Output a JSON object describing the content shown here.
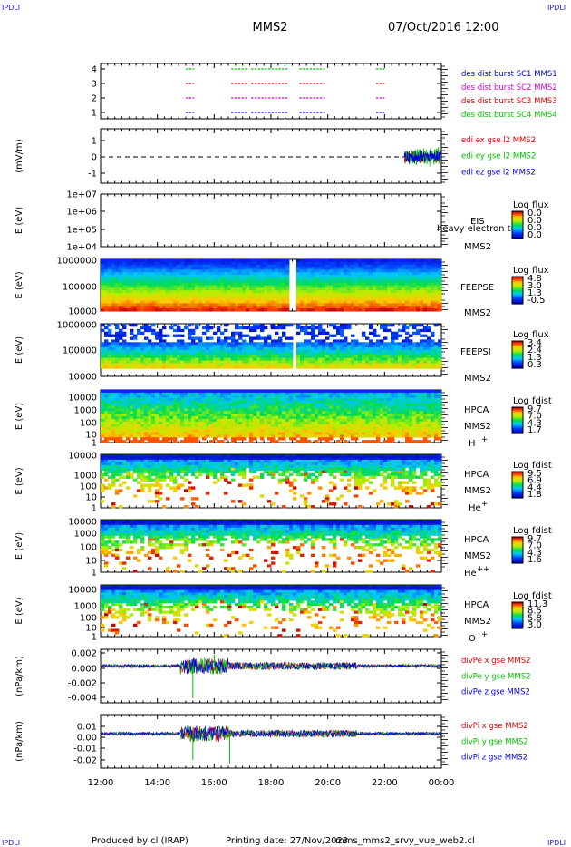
{
  "corner_label": "IPDLI",
  "header": {
    "spacecraft": "MMS2",
    "datetime": "07/Oct/2016 12:00"
  },
  "footer": {
    "produced_by": "Produced by cl (IRAP)",
    "printing_date": "Printing date: 27/Nov/2023",
    "file": "mms_mms2_srvy_vue_web2.cl"
  },
  "colors": {
    "red": "#e00000",
    "green": "#00c000",
    "blue": "#0000e0",
    "magenta": "#d000d0"
  },
  "chart_data": {
    "type": "multi-panel",
    "x_axis": {
      "range_hours": [
        12,
        24
      ],
      "tick_labels": [
        "12:00",
        "14:00",
        "16:00",
        "18:00",
        "20:00",
        "22:00",
        "00:00"
      ]
    },
    "panels": [
      {
        "id": "burst",
        "type": "line",
        "ylabel": "",
        "yticks": [
          "4",
          "3",
          "2",
          "1"
        ],
        "legend": [
          {
            "text": "des dist burst SC1 MMS1",
            "color": "#0000e0"
          },
          {
            "text": "des dist burst SC2 MMS2",
            "color": "#d000d0"
          },
          {
            "text": "des dist burst SC3 MMS3",
            "color": "#e00000"
          },
          {
            "text": "des dist burst SC4 MMS4",
            "color": "#00c000"
          }
        ],
        "series": [
          {
            "level": 4,
            "color": "#00c000",
            "intervals": [
              [
                15.0,
                15.3
              ],
              [
                16.6,
                17.2
              ],
              [
                17.3,
                18.6
              ],
              [
                19.0,
                19.9
              ],
              [
                21.7,
                22.0
              ]
            ]
          },
          {
            "level": 3,
            "color": "#e00000",
            "intervals": [
              [
                15.0,
                15.3
              ],
              [
                16.6,
                17.2
              ],
              [
                17.3,
                18.6
              ],
              [
                19.0,
                19.9
              ],
              [
                21.7,
                22.0
              ]
            ]
          },
          {
            "level": 2,
            "color": "#d000d0",
            "intervals": [
              [
                15.0,
                15.3
              ],
              [
                16.6,
                17.2
              ],
              [
                17.3,
                18.6
              ],
              [
                19.0,
                19.9
              ],
              [
                21.7,
                22.0
              ]
            ]
          },
          {
            "level": 1,
            "color": "#0000e0",
            "intervals": [
              [
                15.0,
                15.3
              ],
              [
                16.6,
                17.2
              ],
              [
                17.3,
                18.6
              ],
              [
                19.0,
                19.9
              ],
              [
                21.7,
                22.0
              ]
            ]
          }
        ]
      },
      {
        "id": "edi",
        "type": "line",
        "ylabel": "(mV/m)",
        "yticks": [
          "1",
          "0",
          "-1"
        ],
        "ylim": [
          -1.5,
          1.5
        ],
        "zero_line": "dashed",
        "legend": [
          {
            "text": "edi ex gse l2 MMS2",
            "color": "#e00000"
          },
          {
            "text": "edi ey gse l2 MMS2",
            "color": "#00c000"
          },
          {
            "text": "edi ez gse l2 MMS2",
            "color": "#0000e0"
          }
        ],
        "data_interval_hours": [
          22.7,
          24.0
        ]
      },
      {
        "id": "eis",
        "type": "heatmap",
        "ylabel": "E (eV)",
        "yticks": [
          "1e+07",
          "1e+06",
          "1e+05",
          "1e+04"
        ],
        "side": [
          "EIS",
          "heavy electron tof",
          "MMS2"
        ],
        "colorbar": {
          "title": "Log flux",
          "ticks": [
            "0.0",
            "0.0",
            "0.0",
            "0.0"
          ]
        },
        "empty": true
      },
      {
        "id": "feeps_e",
        "type": "heatmap",
        "ylabel": "E (eV)",
        "yticks": [
          "1000000",
          "100000",
          "10000"
        ],
        "side": [
          "FEEPSE",
          "MMS2"
        ],
        "colorbar": {
          "title": "Log flux",
          "ticks": [
            "4.8",
            "3.0",
            "1.3",
            "-0.5"
          ]
        }
      },
      {
        "id": "feeps_i",
        "type": "heatmap",
        "ylabel": "E (eV)",
        "yticks": [
          "1000000",
          "100000",
          "10000"
        ],
        "side": [
          "FEEPSI",
          "MMS2"
        ],
        "colorbar": {
          "title": "Log flux",
          "ticks": [
            "3.4",
            "2.4",
            "1.3",
            "0.3"
          ]
        }
      },
      {
        "id": "hpca_h",
        "type": "heatmap",
        "ylabel": "E (eV)",
        "yticks": [
          "10000",
          "1000",
          "100",
          "10",
          "1"
        ],
        "side": [
          "HPCA",
          "MMS2",
          "H",
          "+"
        ],
        "colorbar": {
          "title": "Log fdist",
          "ticks": [
            "9.7",
            "7.0",
            "4.3",
            "1.7"
          ]
        }
      },
      {
        "id": "hpca_he",
        "type": "heatmap",
        "ylabel": "E (eV)",
        "yticks": [
          "10000",
          "1000",
          "100",
          "10",
          "1"
        ],
        "side": [
          "HPCA",
          "MMS2",
          "He",
          "+"
        ],
        "colorbar": {
          "title": "Log fdist",
          "ticks": [
            "9.5",
            "6.9",
            "4.4",
            "1.8"
          ]
        }
      },
      {
        "id": "hpca_hepp",
        "type": "heatmap",
        "ylabel": "E (eV)",
        "yticks": [
          "10000",
          "1000",
          "100",
          "10",
          "1"
        ],
        "side": [
          "HPCA",
          "MMS2",
          "He",
          "++"
        ],
        "colorbar": {
          "title": "Log fdist",
          "ticks": [
            "9.7",
            "7.0",
            "4.3",
            "1.6"
          ]
        }
      },
      {
        "id": "hpca_o",
        "type": "heatmap",
        "ylabel": "E (eV)",
        "yticks": [
          "10000",
          "1000",
          "100",
          "10",
          "1"
        ],
        "side": [
          "HPCA",
          "MMS2",
          "O",
          "+"
        ],
        "colorbar": {
          "title": "Log fdist",
          "ticks": [
            "11.3",
            "8.5",
            "5.8",
            "3.0"
          ]
        }
      },
      {
        "id": "divpe",
        "type": "line",
        "ylabel": "(nPa/km)",
        "yticks": [
          "0.002",
          "0.000",
          "-0.002",
          "-0.004"
        ],
        "ylim": [
          -0.0055,
          0.0025
        ],
        "legend": [
          {
            "text": "divPe x gse MMS2",
            "color": "#e00000"
          },
          {
            "text": "divPe y gse MMS2",
            "color": "#00c000"
          },
          {
            "text": "divPe z gse MMS2",
            "color": "#0000e0"
          }
        ]
      },
      {
        "id": "divpi",
        "type": "line",
        "ylabel": "(nPa/km)",
        "yticks": [
          "0.01",
          "0.00",
          "-0.01",
          "-0.02"
        ],
        "ylim": [
          -0.027,
          0.015
        ],
        "legend": [
          {
            "text": "divPi x gse MMS2",
            "color": "#e00000"
          },
          {
            "text": "divPi y gse MMS2",
            "color": "#00c000"
          },
          {
            "text": "divPi z gse MMS2",
            "color": "#0000e0"
          }
        ]
      }
    ]
  }
}
